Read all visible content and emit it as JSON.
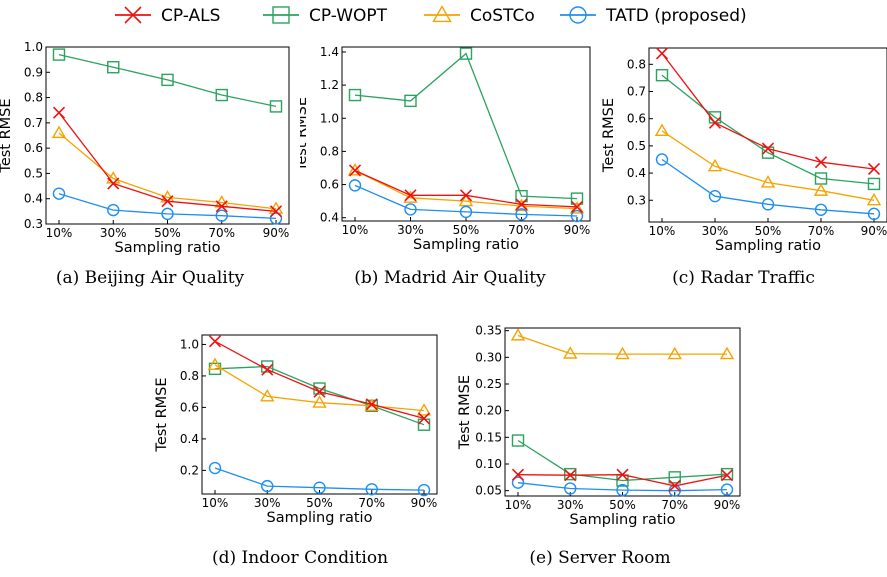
{
  "legend": [
    {
      "name": "CP-ALS",
      "color": "#ee1111",
      "marker": "x"
    },
    {
      "name": "CP-WOPT",
      "color": "#2ca25f",
      "marker": "square"
    },
    {
      "name": "CoSTCo",
      "color": "#f5a300",
      "marker": "triangle"
    },
    {
      "name": "TATD (proposed)",
      "color": "#1f8ef1",
      "marker": "circle"
    }
  ],
  "chart_data": [
    {
      "type": "line",
      "caption": "(a)  Beijing Air Quality",
      "xlabel": "Sampling ratio",
      "ylabel": "Test RMSE",
      "categories": [
        "10%",
        "30%",
        "50%",
        "70%",
        "90%"
      ],
      "ylim": [
        0.3,
        1.0
      ],
      "yticks": [
        "0.3",
        "0.4",
        "0.5",
        "0.6",
        "0.7",
        "0.8",
        "0.9",
        "1.0"
      ],
      "series": [
        {
          "name": "CP-ALS",
          "values": [
            0.74,
            0.46,
            0.39,
            0.37,
            0.35
          ]
        },
        {
          "name": "CP-WOPT",
          "values": [
            0.97,
            0.92,
            0.87,
            0.81,
            0.765
          ]
        },
        {
          "name": "CoSTCo",
          "values": [
            0.66,
            0.48,
            0.405,
            0.385,
            0.36
          ]
        },
        {
          "name": "TATD (proposed)",
          "values": [
            0.42,
            0.355,
            0.34,
            0.333,
            0.322
          ]
        }
      ]
    },
    {
      "type": "line",
      "caption": "(b)  Madrid Air Quality",
      "xlabel": "Sampling ratio",
      "ylabel": "Test RMSE",
      "categories": [
        "10%",
        "30%",
        "50%",
        "70%",
        "90%"
      ],
      "ylim": [
        0.38,
        1.43
      ],
      "yticks": [
        "0.4",
        "0.6",
        "0.8",
        "1.0",
        "1.2",
        "1.4"
      ],
      "series": [
        {
          "name": "CP-ALS",
          "values": [
            0.685,
            0.535,
            0.535,
            0.48,
            0.465
          ]
        },
        {
          "name": "CP-WOPT",
          "values": [
            1.14,
            1.105,
            1.39,
            0.53,
            0.515
          ]
        },
        {
          "name": "CoSTCo",
          "values": [
            0.685,
            0.52,
            0.5,
            0.47,
            0.455
          ]
        },
        {
          "name": "TATD (proposed)",
          "values": [
            0.595,
            0.45,
            0.435,
            0.42,
            0.41
          ]
        }
      ]
    },
    {
      "type": "line",
      "caption": "(c)  Radar Traffic",
      "xlabel": "Sampling ratio",
      "ylabel": "Test RMSE",
      "categories": [
        "10%",
        "30%",
        "50%",
        "70%",
        "90%"
      ],
      "ylim": [
        0.22,
        0.86
      ],
      "yticks": [
        "0.3",
        "0.4",
        "0.5",
        "0.6",
        "0.7",
        "0.8"
      ],
      "series": [
        {
          "name": "CP-ALS",
          "values": [
            0.84,
            0.585,
            0.49,
            0.44,
            0.415
          ]
        },
        {
          "name": "CP-WOPT",
          "values": [
            0.76,
            0.605,
            0.475,
            0.38,
            0.36
          ]
        },
        {
          "name": "CoSTCo",
          "values": [
            0.555,
            0.425,
            0.365,
            0.335,
            0.3
          ]
        },
        {
          "name": "TATD (proposed)",
          "values": [
            0.45,
            0.315,
            0.285,
            0.265,
            0.25
          ]
        }
      ]
    },
    {
      "type": "line",
      "caption": "(d)  Indoor Condition",
      "xlabel": "Sampling ratio",
      "ylabel": "Test RMSE",
      "categories": [
        "10%",
        "30%",
        "50%",
        "70%",
        "90%"
      ],
      "ylim": [
        0.05,
        1.06
      ],
      "yticks": [
        "0.2",
        "0.4",
        "0.6",
        "0.8",
        "1.0"
      ],
      "series": [
        {
          "name": "CP-ALS",
          "values": [
            1.02,
            0.84,
            0.7,
            0.62,
            0.53
          ]
        },
        {
          "name": "CP-WOPT",
          "values": [
            0.845,
            0.86,
            0.72,
            0.61,
            0.49
          ]
        },
        {
          "name": "CoSTCo",
          "values": [
            0.87,
            0.67,
            0.63,
            0.61,
            0.58
          ]
        },
        {
          "name": "TATD (proposed)",
          "values": [
            0.215,
            0.1,
            0.09,
            0.08,
            0.075
          ]
        }
      ]
    },
    {
      "type": "line",
      "caption": "(e)  Server Room",
      "xlabel": "Sampling ratio",
      "ylabel": "Test RMSE",
      "categories": [
        "10%",
        "30%",
        "50%",
        "70%",
        "90%"
      ],
      "ylim": [
        0.04,
        0.355
      ],
      "yticks": [
        "0.05",
        "0.10",
        "0.15",
        "0.20",
        "0.25",
        "0.30",
        "0.35"
      ],
      "series": [
        {
          "name": "CP-ALS",
          "values": [
            0.08,
            0.079,
            0.08,
            0.059,
            0.079
          ]
        },
        {
          "name": "CP-WOPT",
          "values": [
            0.144,
            0.081,
            0.069,
            0.075,
            0.081
          ]
        },
        {
          "name": "CoSTCo",
          "values": [
            0.341,
            0.307,
            0.306,
            0.306,
            0.306
          ]
        },
        {
          "name": "TATD (proposed)",
          "values": [
            0.065,
            0.054,
            0.051,
            0.05,
            0.052
          ]
        }
      ]
    }
  ]
}
